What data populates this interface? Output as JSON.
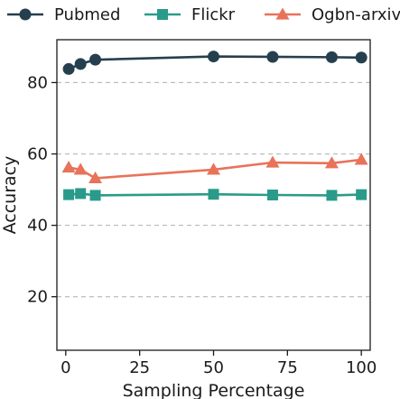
{
  "chart_data": {
    "type": "line",
    "xlabel": "Sampling Percentage",
    "ylabel": "Accuracy",
    "xlim": [
      -3,
      103
    ],
    "ylim": [
      5,
      92
    ],
    "xticks": [
      0,
      25,
      50,
      75,
      100
    ],
    "yticks": [
      20,
      40,
      60,
      80
    ],
    "xtick_labels": [
      "0",
      "25",
      "50",
      "75",
      "100"
    ],
    "ytick_labels": [
      "20",
      "40",
      "60",
      "80"
    ],
    "grid": "horizontal dashed",
    "legend": "top, outside plot, horizontal",
    "series": [
      {
        "name": "Pubmed",
        "marker": "circle",
        "color": "#263f4e",
        "x": [
          1,
          5,
          10,
          50,
          70,
          90,
          100
        ],
        "values": [
          83.8,
          85.2,
          86.4,
          87.3,
          87.2,
          87.1,
          87.0
        ]
      },
      {
        "name": "Flickr",
        "marker": "square",
        "color": "#2a9b8a",
        "x": [
          1,
          5,
          10,
          50,
          70,
          90,
          100
        ],
        "values": [
          48.6,
          48.9,
          48.4,
          48.7,
          48.5,
          48.4,
          48.6
        ]
      },
      {
        "name": "Ogbn-arxiv",
        "marker": "triangle",
        "color": "#e8735a",
        "x": [
          1,
          5,
          10,
          50,
          70,
          90,
          100
        ],
        "values": [
          56.2,
          55.6,
          53.2,
          55.6,
          57.6,
          57.4,
          58.4
        ]
      }
    ]
  }
}
